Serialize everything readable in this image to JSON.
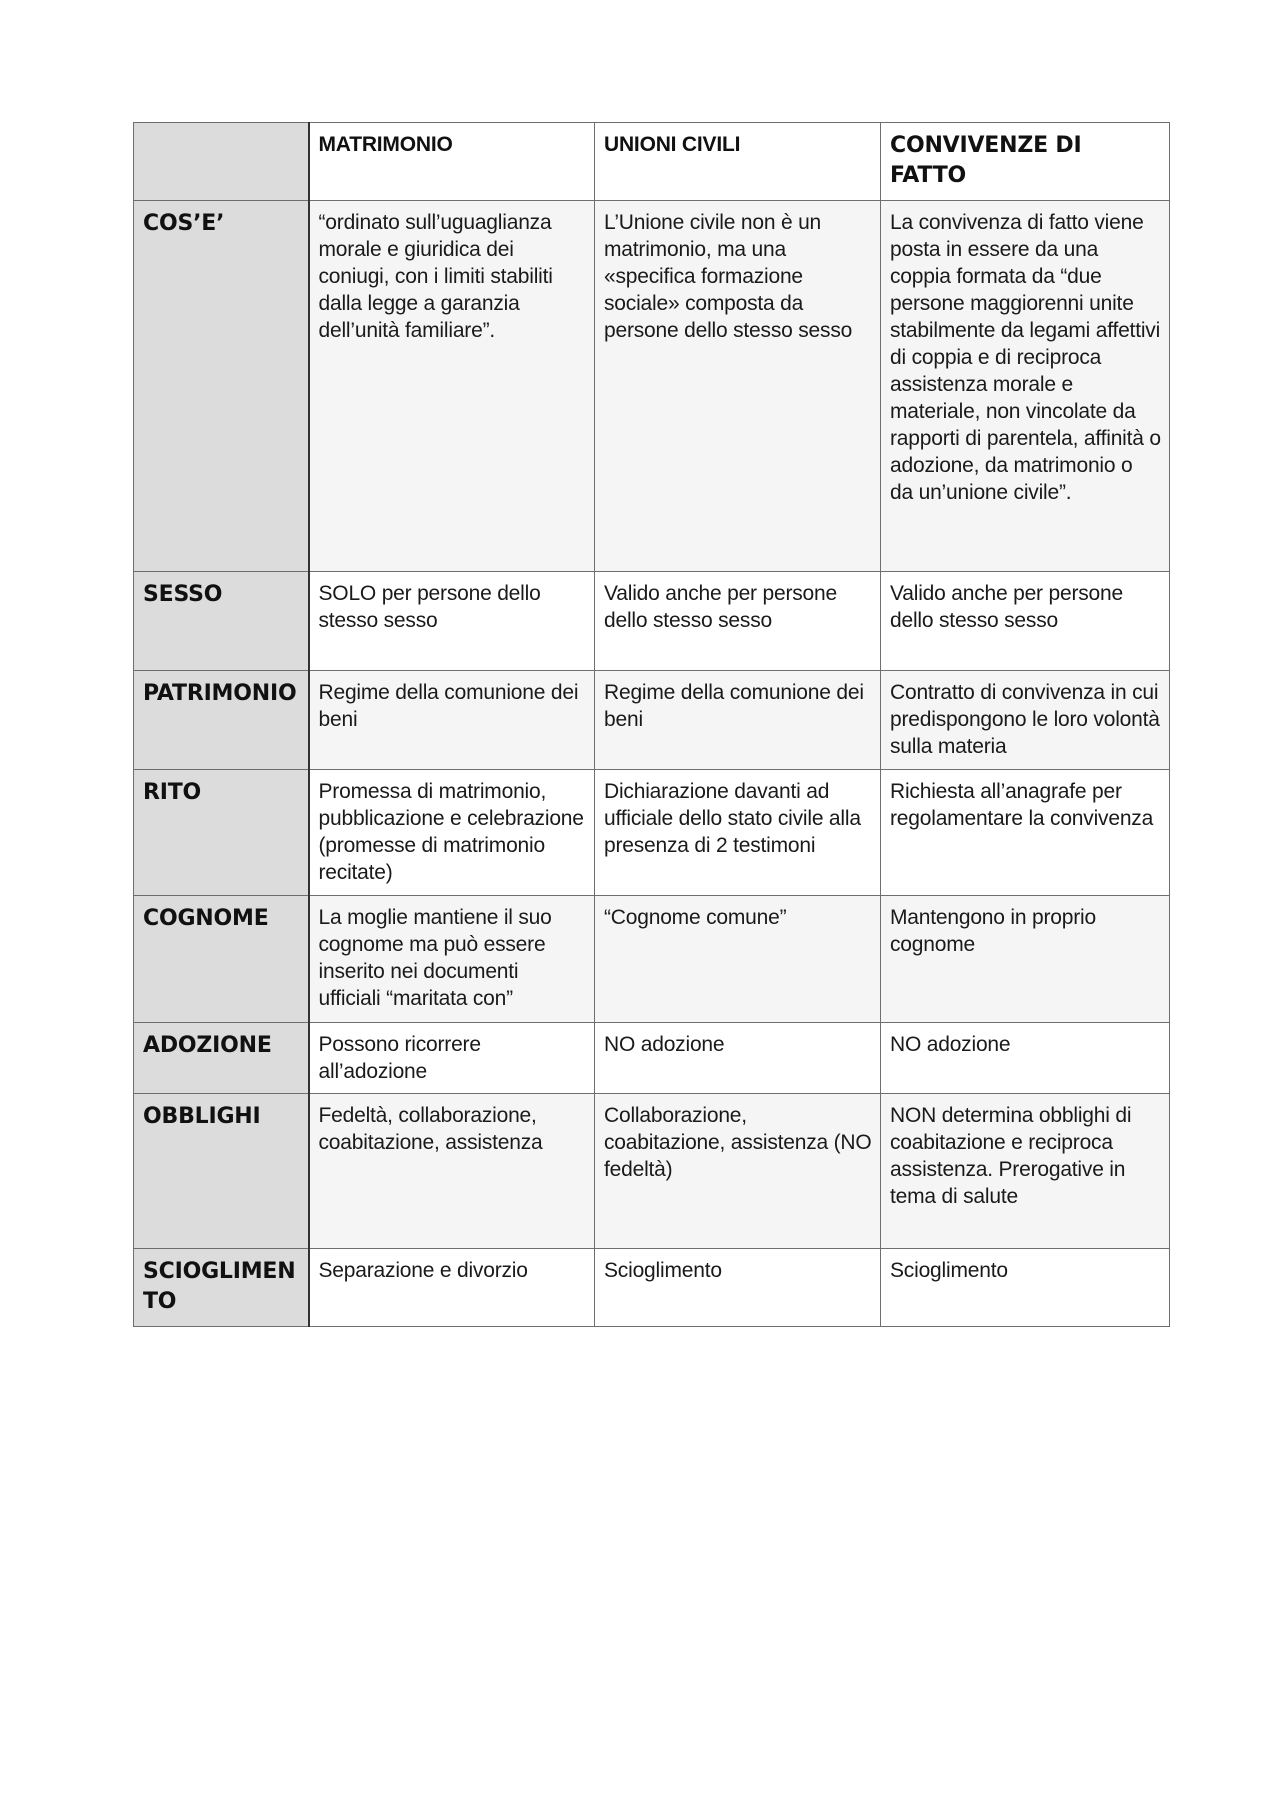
{
  "table": {
    "headers": [
      "",
      "MATRIMONIO",
      "UNIONI CIVILI",
      "CONVIVENZE DI FATTO"
    ],
    "rows": [
      {
        "label": "COS’E’",
        "cells": [
          "“ordinato sull’uguaglianza morale e giuridica dei coniugi, con i limiti stabiliti dalla legge a garanzia dell’unità familiare”.",
          "L’Unione civile non è un matrimonio, ma una «specifica formazione sociale» composta da persone dello stesso sesso",
          "La convivenza di fatto viene posta in essere da una coppia formata da “due persone maggiorenni unite stabilmente da legami affettivi di coppia e di reciproca assistenza morale e materiale, non vincolate da rapporti di parentela, affinità o adozione, da matrimonio o da un’unione civile”."
        ]
      },
      {
        "label": "SESSO",
        "cells": [
          "SOLO per persone dello stesso sesso",
          "Valido anche per persone dello stesso sesso",
          "Valido anche per persone dello stesso sesso"
        ]
      },
      {
        "label": "PATRIMONIO",
        "cells": [
          "Regime della comunione dei beni",
          "Regime della comunione dei beni",
          "Contratto di convivenza in cui predispongono le loro volontà sulla materia"
        ]
      },
      {
        "label": "RITO",
        "cells": [
          "Promessa di matrimonio, pubblicazione e celebrazione (promesse di matrimonio recitate)",
          "Dichiarazione davanti ad ufficiale dello stato civile alla presenza di 2 testimoni",
          "Richiesta all’anagrafe per regolamentare la convivenza"
        ]
      },
      {
        "label": "COGNOME",
        "cells": [
          "La moglie mantiene il suo cognome ma può essere inserito nei documenti ufficiali “maritata con”",
          "“Cognome comune”",
          "Mantengono in proprio cognome"
        ]
      },
      {
        "label": "ADOZIONE",
        "cells": [
          "Possono ricorrere all’adozione",
          "NO adozione",
          "NO adozione"
        ]
      },
      {
        "label": "OBBLIGHI",
        "cells": [
          "Fedeltà, collaborazione, coabitazione, assistenza",
          "Collaborazione, coabitazione, assistenza (NO fedeltà)",
          "NON determina obblighi di coabitazione e reciproca assistenza. Prerogative in tema di salute"
        ]
      },
      {
        "label": "SCIOGLIMENTO",
        "cells": [
          "Separazione e divorzio",
          "Scioglimento",
          "Scioglimento"
        ]
      }
    ]
  }
}
